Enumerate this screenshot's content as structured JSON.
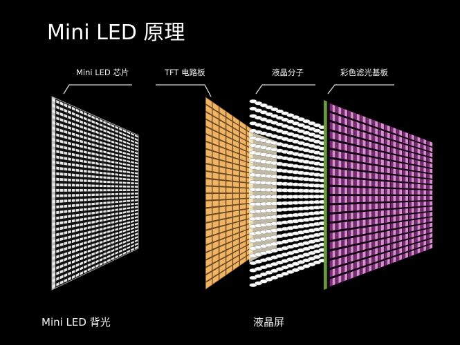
{
  "title": "Mini LED 原理",
  "labels": {
    "led_chip": "Mini LED 芯片",
    "tft": "TFT 电路板",
    "liquid_crystal": "液晶分子",
    "color_filter": "彩色滤光基板"
  },
  "bottom": {
    "backlight": "Mini LED 背光",
    "lcd": "液晶屏"
  },
  "colors": {
    "background": "#000000",
    "led": "#e8e8e8",
    "tft": "#f0b464",
    "liquid_crystal": "#ffffff",
    "filter_purple": "#7a2a7a",
    "filter_pink": "#d890c8",
    "filter_green": "#6a9a40"
  }
}
